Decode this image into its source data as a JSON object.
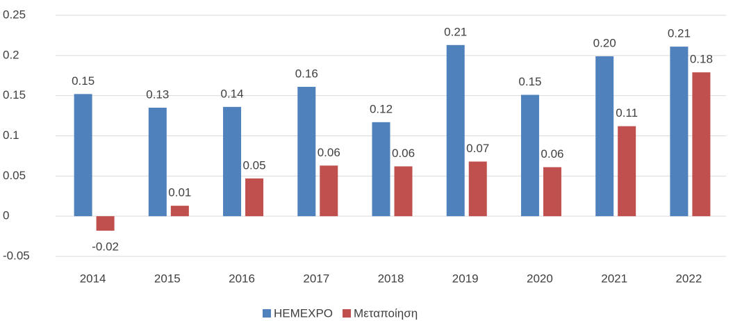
{
  "chart_data": {
    "type": "bar",
    "categories": [
      "2014",
      "2015",
      "2016",
      "2017",
      "2018",
      "2019",
      "2020",
      "2021",
      "2022"
    ],
    "series": [
      {
        "name": "HEMEXPO",
        "color": "#4f81bd",
        "values": [
          0.152,
          0.135,
          0.136,
          0.161,
          0.117,
          0.213,
          0.151,
          0.199,
          0.211
        ],
        "value_labels": [
          "0.15",
          "0.13",
          "0.14",
          "0.16",
          "0.12",
          "0.21",
          "0.15",
          "0.20",
          "0.21"
        ]
      },
      {
        "name": "Μεταποίηση",
        "color": "#c0504d",
        "values": [
          -0.018,
          0.013,
          0.047,
          0.063,
          0.062,
          0.068,
          0.061,
          0.112,
          0.179
        ],
        "value_labels": [
          "-0.02",
          "0.01",
          "0.05",
          "0.06",
          "0.06",
          "0.07",
          "0.06",
          "0.11",
          "0.18"
        ]
      }
    ],
    "ylim": [
      -0.05,
      0.25
    ],
    "yticks": [
      -0.05,
      0,
      0.05,
      0.1,
      0.15,
      0.2,
      0.25
    ],
    "grid": true,
    "legend": "bottom"
  }
}
